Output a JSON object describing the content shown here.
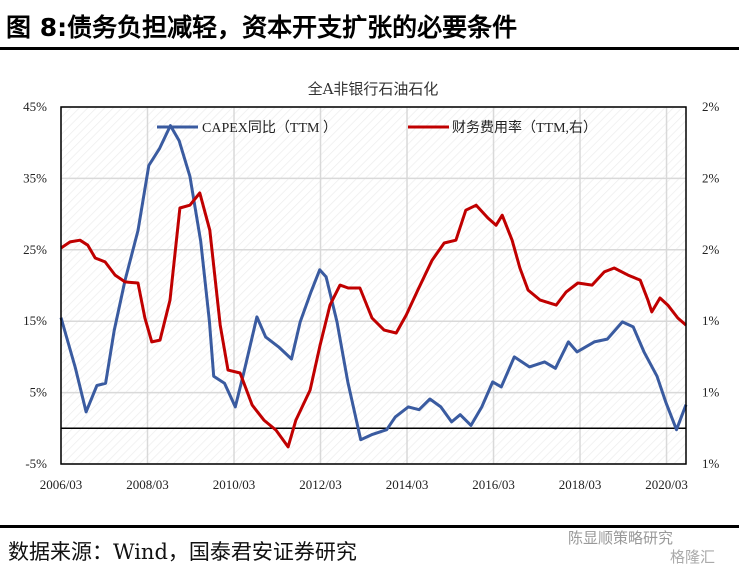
{
  "figure_title": "图 8:债务负担减轻，资本开支扩张的必要条件",
  "source": "数据来源：Wind，国泰君安证券研究",
  "watermark": "陈显顺策略研究",
  "watermark2": "格隆汇",
  "chart_data": {
    "type": "line",
    "title": "全A非银行石油石化",
    "xlabel": "",
    "ylabel": "",
    "x_ticks": [
      {
        "label": "2006/03",
        "year": 2006.17
      },
      {
        "label": "2008/03",
        "year": 2008.17
      },
      {
        "label": "2010/03",
        "year": 2010.17
      },
      {
        "label": "2012/03",
        "year": 2012.17
      },
      {
        "label": "2014/03",
        "year": 2014.17
      },
      {
        "label": "2016/03",
        "year": 2016.17
      },
      {
        "label": "2018/03",
        "year": 2018.17
      },
      {
        "label": "2020/03",
        "year": 2020.17
      }
    ],
    "xlim": [
      2006.17,
      2020.62
    ],
    "ylim_left": [
      -5,
      45
    ],
    "left_ticks": [
      {
        "label": "45%",
        "value": 45
      },
      {
        "label": "35%",
        "value": 35
      },
      {
        "label": "25%",
        "value": 25
      },
      {
        "label": "15%",
        "value": 15
      },
      {
        "label": "5%",
        "value": 5
      },
      {
        "label": "-5%",
        "value": -5
      }
    ],
    "ylim_right": [
      1.0,
      2.0
    ],
    "right_ticks": [
      {
        "label": "2%",
        "value": 2.0
      },
      {
        "label": "2%",
        "value": 1.8
      },
      {
        "label": "2%",
        "value": 1.6
      },
      {
        "label": "1%",
        "value": 1.4
      },
      {
        "label": "1%",
        "value": 1.2
      },
      {
        "label": "1%",
        "value": 1.0
      }
    ],
    "zero_line": 0,
    "grid": true,
    "legend_position": "top",
    "series": [
      {
        "name": "CAPEX同比（TTM ）",
        "axis": "left",
        "color": "#3A5BA0",
        "points": [
          [
            2006.17,
            15.5
          ],
          [
            2006.5,
            8.5
          ],
          [
            2006.75,
            2.3
          ],
          [
            2007.0,
            6
          ],
          [
            2007.2,
            6.3
          ],
          [
            2007.4,
            13.7
          ],
          [
            2007.65,
            20.7
          ],
          [
            2007.95,
            27.7
          ],
          [
            2008.2,
            36.8
          ],
          [
            2008.45,
            39.2
          ],
          [
            2008.7,
            42.4
          ],
          [
            2008.9,
            40.3
          ],
          [
            2009.15,
            35.3
          ],
          [
            2009.4,
            26.2
          ],
          [
            2009.6,
            15
          ],
          [
            2009.7,
            7.3
          ],
          [
            2009.95,
            6.3
          ],
          [
            2010.2,
            3
          ],
          [
            2010.4,
            7.9
          ],
          [
            2010.7,
            15.6
          ],
          [
            2010.9,
            12.8
          ],
          [
            2011.2,
            11.4
          ],
          [
            2011.5,
            9.7
          ],
          [
            2011.7,
            14.9
          ],
          [
            2011.95,
            19.1
          ],
          [
            2012.15,
            22.2
          ],
          [
            2012.3,
            21.2
          ],
          [
            2012.55,
            14.9
          ],
          [
            2012.8,
            6.5
          ],
          [
            2013.1,
            -1.6
          ],
          [
            2013.35,
            -0.9
          ],
          [
            2013.7,
            -0.2
          ],
          [
            2013.9,
            1.6
          ],
          [
            2014.2,
            3
          ],
          [
            2014.45,
            2.6
          ],
          [
            2014.7,
            4.1
          ],
          [
            2014.95,
            3
          ],
          [
            2015.2,
            0.9
          ],
          [
            2015.4,
            1.9
          ],
          [
            2015.65,
            0.4
          ],
          [
            2015.9,
            3
          ],
          [
            2016.15,
            6.5
          ],
          [
            2016.35,
            5.8
          ],
          [
            2016.65,
            10
          ],
          [
            2017.0,
            8.6
          ],
          [
            2017.35,
            9.3
          ],
          [
            2017.6,
            8.4
          ],
          [
            2017.9,
            12.1
          ],
          [
            2018.1,
            10.7
          ],
          [
            2018.5,
            12.1
          ],
          [
            2018.8,
            12.5
          ],
          [
            2019.15,
            14.9
          ],
          [
            2019.4,
            14.2
          ],
          [
            2019.65,
            10.7
          ],
          [
            2019.95,
            7.3
          ],
          [
            2020.15,
            3.7
          ],
          [
            2020.4,
            -0.2
          ],
          [
            2020.62,
            3.3
          ]
        ]
      },
      {
        "name": "财务费用率（TTM,右）",
        "axis": "right",
        "color": "#C00000",
        "points": [
          [
            2006.17,
            1.605
          ],
          [
            2006.38,
            1.622
          ],
          [
            2006.61,
            1.627
          ],
          [
            2006.79,
            1.613
          ],
          [
            2006.96,
            1.577
          ],
          [
            2007.19,
            1.566
          ],
          [
            2007.42,
            1.529
          ],
          [
            2007.65,
            1.51
          ],
          [
            2007.95,
            1.507
          ],
          [
            2008.11,
            1.409
          ],
          [
            2008.27,
            1.342
          ],
          [
            2008.46,
            1.347
          ],
          [
            2008.69,
            1.459
          ],
          [
            2008.92,
            1.717
          ],
          [
            2009.15,
            1.725
          ],
          [
            2009.38,
            1.759
          ],
          [
            2009.61,
            1.655
          ],
          [
            2009.85,
            1.389
          ],
          [
            2010.03,
            1.263
          ],
          [
            2010.31,
            1.255
          ],
          [
            2010.59,
            1.165
          ],
          [
            2010.86,
            1.123
          ],
          [
            2011.14,
            1.095
          ],
          [
            2011.42,
            1.048
          ],
          [
            2011.6,
            1.123
          ],
          [
            2011.93,
            1.207
          ],
          [
            2012.16,
            1.333
          ],
          [
            2012.39,
            1.445
          ],
          [
            2012.62,
            1.501
          ],
          [
            2012.81,
            1.493
          ],
          [
            2013.08,
            1.493
          ],
          [
            2013.36,
            1.409
          ],
          [
            2013.64,
            1.375
          ],
          [
            2013.92,
            1.367
          ],
          [
            2014.15,
            1.417
          ],
          [
            2014.42,
            1.487
          ],
          [
            2014.75,
            1.571
          ],
          [
            2015.03,
            1.619
          ],
          [
            2015.3,
            1.627
          ],
          [
            2015.53,
            1.711
          ],
          [
            2015.77,
            1.725
          ],
          [
            2016.04,
            1.689
          ],
          [
            2016.23,
            1.669
          ],
          [
            2016.37,
            1.697
          ],
          [
            2016.6,
            1.627
          ],
          [
            2016.78,
            1.549
          ],
          [
            2016.97,
            1.487
          ],
          [
            2017.25,
            1.459
          ],
          [
            2017.62,
            1.445
          ],
          [
            2017.85,
            1.482
          ],
          [
            2018.12,
            1.507
          ],
          [
            2018.45,
            1.501
          ],
          [
            2018.73,
            1.538
          ],
          [
            2018.96,
            1.549
          ],
          [
            2019.28,
            1.529
          ],
          [
            2019.56,
            1.515
          ],
          [
            2019.74,
            1.459
          ],
          [
            2019.83,
            1.426
          ],
          [
            2020.02,
            1.465
          ],
          [
            2020.2,
            1.445
          ],
          [
            2020.43,
            1.409
          ],
          [
            2020.62,
            1.389
          ]
        ]
      }
    ]
  }
}
